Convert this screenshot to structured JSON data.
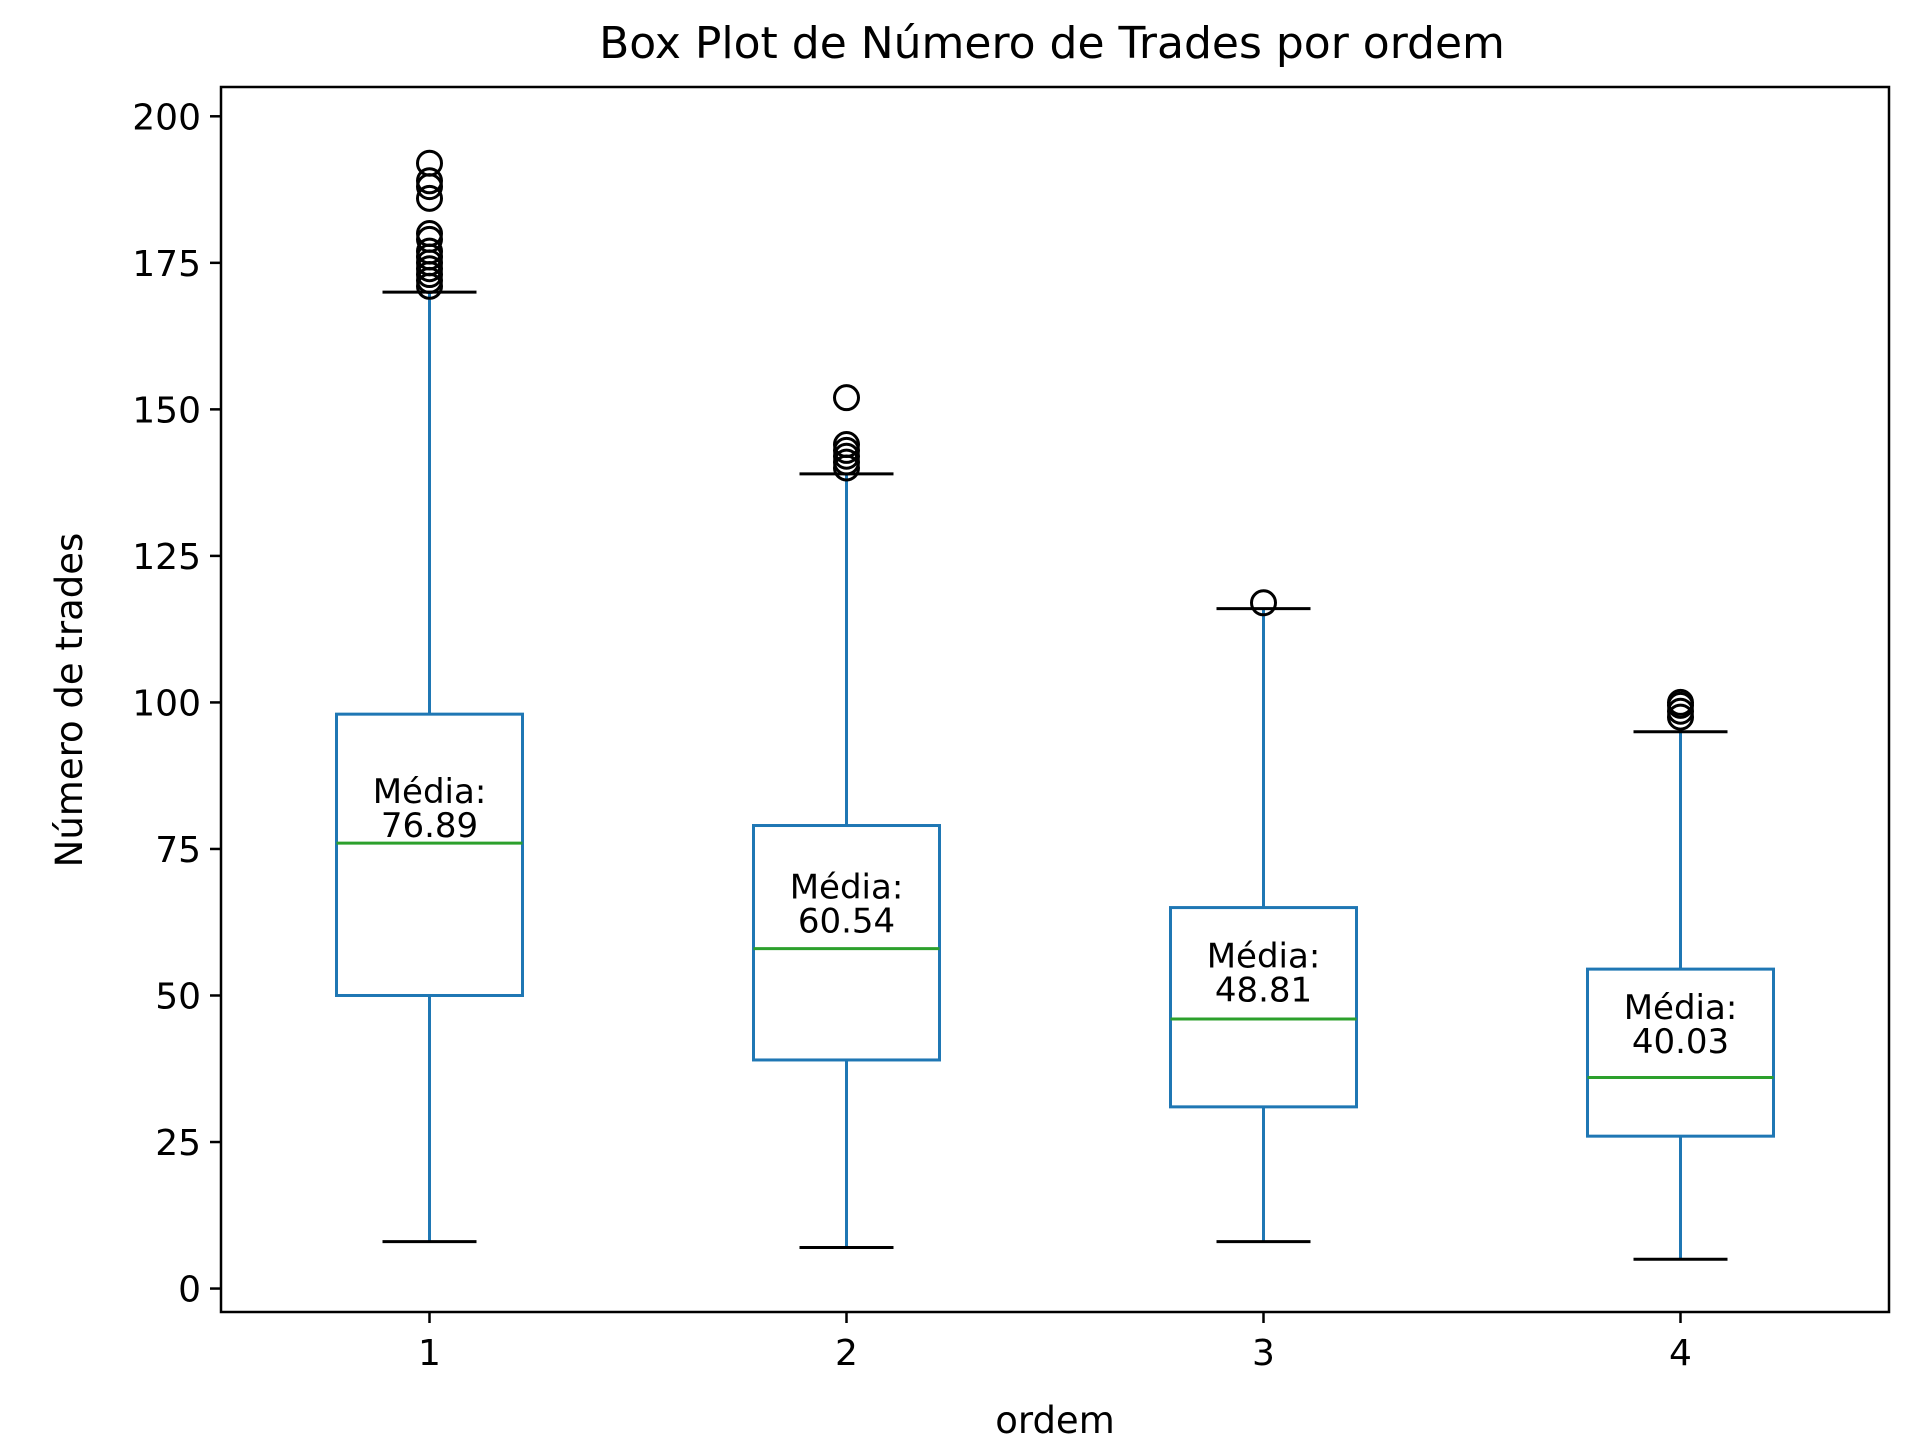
{
  "chart_data": {
    "type": "box",
    "title": "Box Plot de Número de Trades por ordem",
    "xlabel": "ordem",
    "ylabel": "Número de trades",
    "categories": [
      "1",
      "2",
      "3",
      "4"
    ],
    "ylim": [
      -4,
      205
    ],
    "yticks": [
      0,
      25,
      50,
      75,
      100,
      125,
      150,
      175,
      200
    ],
    "grid": false,
    "legend": "none",
    "mean_prefix": "Média:",
    "boxes": [
      {
        "category": "1",
        "whisker_low": 8,
        "q1": 50,
        "median": 76,
        "q3": 98,
        "whisker_high": 170,
        "mean": 76.89,
        "mean_text": "76.89",
        "outliers": [
          171,
          172,
          173,
          174,
          175,
          176,
          177,
          179,
          180,
          186,
          188,
          189,
          192
        ]
      },
      {
        "category": "2",
        "whisker_low": 7,
        "q1": 39,
        "median": 58,
        "q3": 79,
        "whisker_high": 139,
        "mean": 60.54,
        "mean_text": "60.54",
        "outliers": [
          140,
          141,
          142,
          143,
          144,
          152
        ]
      },
      {
        "category": "3",
        "whisker_low": 8,
        "q1": 31,
        "median": 46,
        "q3": 65,
        "whisker_high": 116,
        "mean": 48.81,
        "mean_text": "48.81",
        "outliers": [
          117
        ]
      },
      {
        "category": "4",
        "whisker_low": 5,
        "q1": 26,
        "median": 36,
        "q3": 54.5,
        "whisker_high": 95,
        "mean": 40.03,
        "mean_text": "40.03",
        "outliers": [
          97.5,
          98.5,
          99.5,
          100
        ]
      }
    ],
    "colors": {
      "box": "#1f77b4",
      "median": "#2ca02c",
      "caps": "#000000",
      "outlier": "#000000",
      "axes": "#000000"
    }
  }
}
